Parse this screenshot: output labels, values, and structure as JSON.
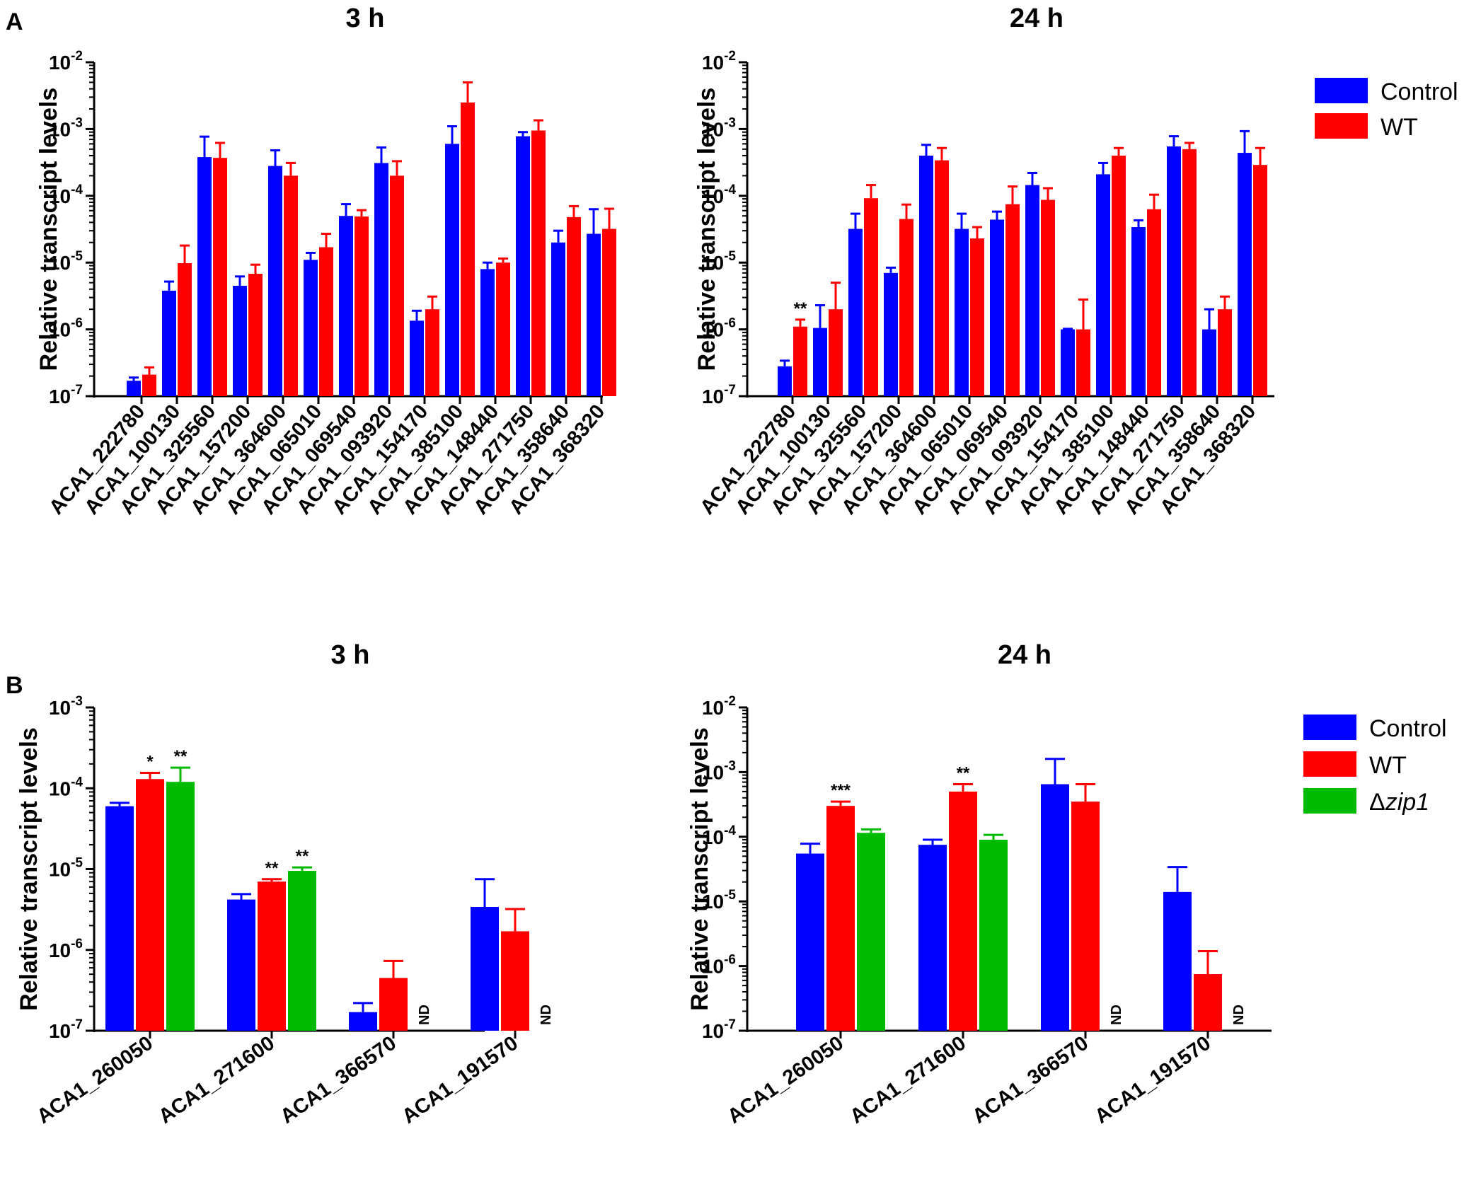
{
  "figure": {
    "panel_labels": [
      "A",
      "B"
    ]
  },
  "legend_A": [
    {
      "name": "Control",
      "color": "#0000FF"
    },
    {
      "name": "WT",
      "color": "#FF0000"
    }
  ],
  "legend_B": [
    {
      "name": "Control",
      "color": "#0000FF"
    },
    {
      "name": "WT",
      "color": "#FF0000"
    },
    {
      "name": "Δzip1",
      "prefix": "Δ",
      "italic": "zip1",
      "color": "#00BB00"
    }
  ],
  "chart_data": [
    {
      "id": "A-3h",
      "type": "bar",
      "title": "3 h",
      "ylabel": "Relative transcript levels",
      "yscale": "log",
      "ylim": [
        1e-07,
        0.01
      ],
      "y_ticks": [
        {
          "base": "10",
          "exp": "-7"
        },
        {
          "base": "10",
          "exp": "-6"
        },
        {
          "base": "10",
          "exp": "-5"
        },
        {
          "base": "10",
          "exp": "-4"
        },
        {
          "base": "10",
          "exp": "-3"
        },
        {
          "base": "10",
          "exp": "-2"
        }
      ],
      "categories": [
        "ACA1_222780",
        "ACA1_100130",
        "ACA1_325560",
        "ACA1_157200",
        "ACA1_364600",
        "ACA1_065010",
        "ACA1_069540",
        "ACA1_093920",
        "ACA1_154170",
        "ACA1_385100",
        "ACA1_148440",
        "ACA1_271750",
        "ACA1_358640",
        "ACA1_368320"
      ],
      "series": [
        {
          "name": "Control",
          "color": "#0000FF",
          "values": [
            1.7e-07,
            3.8e-06,
            0.00038,
            4.5e-06,
            0.00028,
            1.1e-05,
            5e-05,
            0.00031,
            1.35e-06,
            0.0006,
            8e-06,
            0.00078,
            2e-05,
            2.7e-05
          ],
          "errors": [
            1.9e-07,
            5.2e-06,
            0.00077,
            6.2e-06,
            0.00048,
            1.4e-05,
            7.5e-05,
            0.00053,
            1.9e-06,
            0.0011,
            1e-05,
            0.0009,
            3e-05,
            6.3e-05
          ]
        },
        {
          "name": "WT",
          "color": "#FF0000",
          "values": [
            2.1e-07,
            9.8e-06,
            0.00037,
            6.8e-06,
            0.0002,
            1.7e-05,
            4.9e-05,
            0.0002,
            2e-06,
            0.0025,
            1e-05,
            0.00095,
            4.8e-05,
            3.2e-05
          ],
          "errors": [
            2.7e-07,
            1.8e-05,
            0.00062,
            9.3e-06,
            0.00031,
            2.7e-05,
            6.1e-05,
            0.00033,
            3.1e-06,
            0.005,
            1.15e-05,
            0.00135,
            7e-05,
            6.4e-05
          ]
        }
      ],
      "annotations": []
    },
    {
      "id": "A-24h",
      "type": "bar",
      "title": "24 h",
      "ylabel": "Relative transcript levels",
      "yscale": "log",
      "ylim": [
        1e-07,
        0.01
      ],
      "y_ticks": [
        {
          "base": "10",
          "exp": "-7"
        },
        {
          "base": "10",
          "exp": "-6"
        },
        {
          "base": "10",
          "exp": "-5"
        },
        {
          "base": "10",
          "exp": "-4"
        },
        {
          "base": "10",
          "exp": "-3"
        },
        {
          "base": "10",
          "exp": "-2"
        }
      ],
      "categories": [
        "ACA1_222780",
        "ACA1_100130",
        "ACA1_325560",
        "ACA1_157200",
        "ACA1_364600",
        "ACA1_065010",
        "ACA1_069540",
        "ACA1_093920",
        "ACA1_154170",
        "ACA1_385100",
        "ACA1_148440",
        "ACA1_271750",
        "ACA1_358640",
        "ACA1_368320"
      ],
      "series": [
        {
          "name": "Control",
          "color": "#0000FF",
          "values": [
            2.8e-07,
            1.05e-06,
            3.2e-05,
            7e-06,
            0.0004,
            3.2e-05,
            4.4e-05,
            0.000145,
            1e-06,
            0.00021,
            3.4e-05,
            0.00055,
            1e-06,
            0.00044
          ],
          "errors": [
            3.4e-07,
            2.3e-06,
            5.4e-05,
            8.4e-06,
            0.00058,
            5.4e-05,
            5.8e-05,
            0.00022,
            1.02e-06,
            0.00031,
            4.3e-05,
            0.00078,
            2e-06,
            0.00093
          ]
        },
        {
          "name": "WT",
          "color": "#FF0000",
          "values": [
            1.1e-06,
            2e-06,
            9.2e-05,
            4.5e-05,
            0.00034,
            2.3e-05,
            7.5e-05,
            8.7e-05,
            1e-06,
            0.0004,
            6.3e-05,
            0.0005,
            2e-06,
            0.00029
          ],
          "errors": [
            1.4e-06,
            5e-06,
            0.000145,
            7.4e-05,
            0.00052,
            3.4e-05,
            0.000138,
            0.00013,
            2.8e-06,
            0.00052,
            0.000104,
            0.00062,
            3.1e-06,
            0.00052
          ]
        }
      ],
      "annotations": [
        {
          "category": "ACA1_222780",
          "series": "WT",
          "text": "**"
        }
      ]
    },
    {
      "id": "B-3h",
      "type": "bar",
      "title": "3 h",
      "ylabel": "Relative transcript levels",
      "yscale": "log",
      "ylim": [
        1e-07,
        0.001
      ],
      "y_ticks": [
        {
          "base": "10",
          "exp": "-7"
        },
        {
          "base": "10",
          "exp": "-6"
        },
        {
          "base": "10",
          "exp": "-5"
        },
        {
          "base": "10",
          "exp": "-4"
        },
        {
          "base": "10",
          "exp": "-3"
        }
      ],
      "categories": [
        "ACA1_260050",
        "ACA1_271600",
        "ACA1_366570",
        "ACA1_191570"
      ],
      "series": [
        {
          "name": "Control",
          "color": "#0000FF",
          "values": [
            6e-05,
            4.2e-06,
            1.7e-07,
            3.4e-06
          ],
          "errors": [
            6.6e-05,
            4.9e-06,
            2.2e-07,
            7.5e-06
          ]
        },
        {
          "name": "WT",
          "color": "#FF0000",
          "values": [
            0.00013,
            7e-06,
            4.5e-07,
            1.7e-06
          ],
          "errors": [
            0.000155,
            7.5e-06,
            7.3e-07,
            3.2e-06
          ]
        },
        {
          "name": "Δzip1",
          "color": "#00BB00",
          "values": [
            0.00012,
            9.5e-06,
            null,
            null
          ],
          "errors": [
            0.00018,
            1.05e-05,
            null,
            null
          ]
        }
      ],
      "annotations": [
        {
          "category": "ACA1_260050",
          "series": "WT",
          "text": "*"
        },
        {
          "category": "ACA1_260050",
          "series": "Δzip1",
          "text": "**"
        },
        {
          "category": "ACA1_271600",
          "series": "WT",
          "text": "**"
        },
        {
          "category": "ACA1_271600",
          "series": "Δzip1",
          "text": "**"
        },
        {
          "category": "ACA1_366570",
          "series": "Δzip1",
          "text": "ND"
        },
        {
          "category": "ACA1_191570",
          "series": "Δzip1",
          "text": "ND"
        }
      ]
    },
    {
      "id": "B-24h",
      "type": "bar",
      "title": "24 h",
      "ylabel": "Relative transcript levels",
      "yscale": "log",
      "ylim": [
        1e-07,
        0.01
      ],
      "y_ticks": [
        {
          "base": "10",
          "exp": "-7"
        },
        {
          "base": "10",
          "exp": "-6"
        },
        {
          "base": "10",
          "exp": "-5"
        },
        {
          "base": "10",
          "exp": "-4"
        },
        {
          "base": "10",
          "exp": "-3"
        },
        {
          "base": "10",
          "exp": "-2"
        }
      ],
      "categories": [
        "ACA1_260050",
        "ACA1_271600",
        "ACA1_366570",
        "ACA1_191570"
      ],
      "series": [
        {
          "name": "Control",
          "color": "#0000FF",
          "values": [
            5.5e-05,
            7.5e-05,
            0.00065,
            1.4e-05
          ],
          "errors": [
            7.8e-05,
            9e-05,
            0.0016,
            3.4e-05
          ]
        },
        {
          "name": "WT",
          "color": "#FF0000",
          "values": [
            0.0003,
            0.0005,
            0.00035,
            7.5e-07
          ],
          "errors": [
            0.00035,
            0.00065,
            0.00065,
            1.7e-06
          ]
        },
        {
          "name": "Δzip1",
          "color": "#00BB00",
          "values": [
            0.000115,
            9e-05,
            null,
            null
          ],
          "errors": [
            0.00013,
            0.000107,
            null,
            null
          ]
        }
      ],
      "annotations": [
        {
          "category": "ACA1_260050",
          "series": "WT",
          "text": "***"
        },
        {
          "category": "ACA1_271600",
          "series": "WT",
          "text": "**"
        },
        {
          "category": "ACA1_366570",
          "series": "Δzip1",
          "text": "ND"
        },
        {
          "category": "ACA1_191570",
          "series": "Δzip1",
          "text": "ND"
        }
      ]
    }
  ]
}
